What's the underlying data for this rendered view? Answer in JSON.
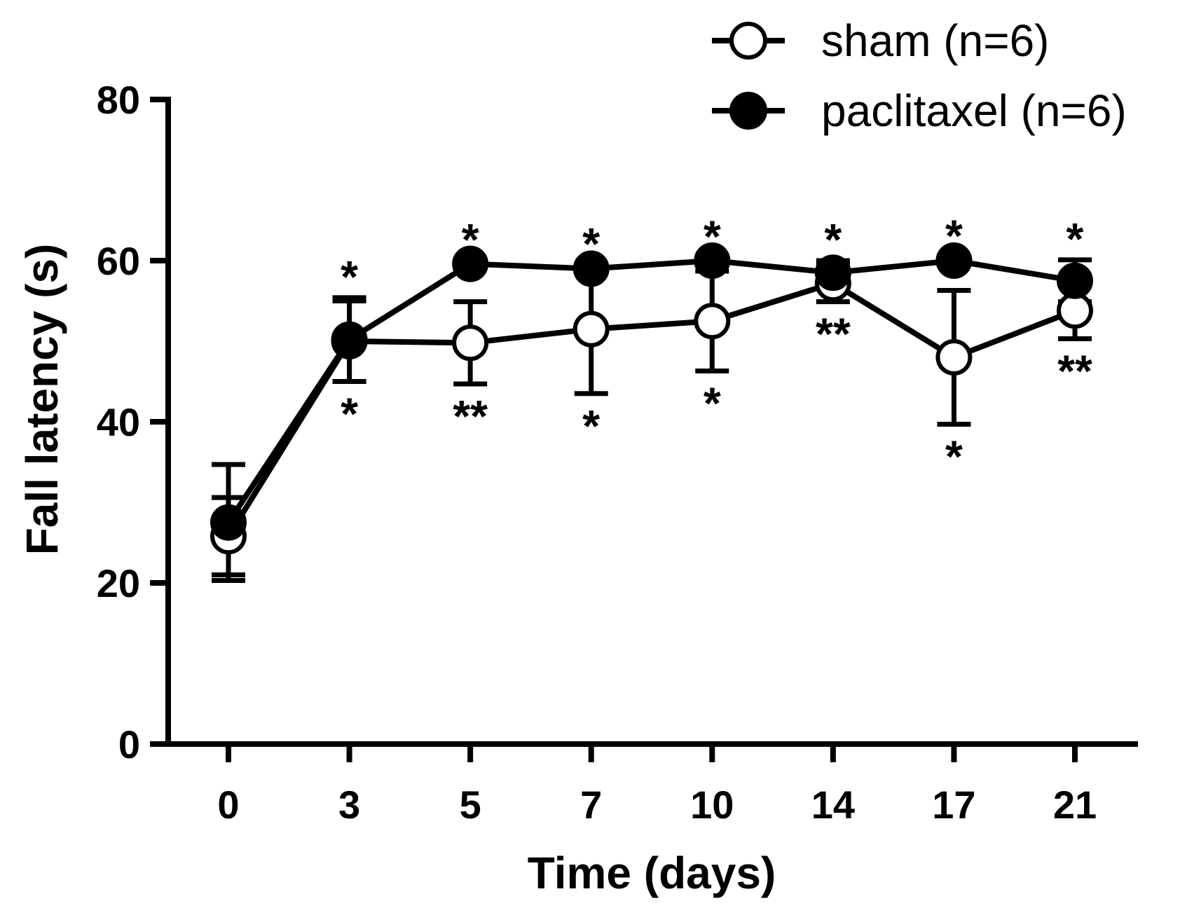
{
  "chart_data": {
    "type": "line",
    "title": "",
    "xlabel": "Time (days)",
    "ylabel": "Fall latency (s)",
    "categories": [
      "0",
      "3",
      "5",
      "7",
      "10",
      "14",
      "17",
      "21"
    ],
    "ylim": [
      0,
      80
    ],
    "yticks": [
      "0",
      "20",
      "40",
      "60",
      "80"
    ],
    "grid": false,
    "legend_position": "top-right",
    "series": [
      {
        "name": "sham (n=6)",
        "marker": "open-circle",
        "values": [
          25.8,
          50.0,
          49.8,
          51.5,
          52.5,
          57.2,
          48.0,
          53.8
        ],
        "error": [
          4.8,
          5.0,
          5.1,
          8.0,
          6.2,
          2.3,
          8.3,
          3.5
        ],
        "significance": [
          "",
          "*",
          "**",
          "*",
          "*",
          "**",
          "*",
          "**"
        ]
      },
      {
        "name": "paclitaxel (n=6)",
        "marker": "filled-circle",
        "values": [
          27.5,
          50.2,
          59.6,
          59.0,
          60.0,
          58.5,
          60.0,
          57.5
        ],
        "error": [
          7.2,
          5.2,
          0.4,
          0.5,
          0.4,
          1.5,
          0.5,
          2.6
        ],
        "significance": [
          "",
          "*",
          "*",
          "*",
          "*",
          "*",
          "*",
          "*"
        ]
      }
    ]
  }
}
